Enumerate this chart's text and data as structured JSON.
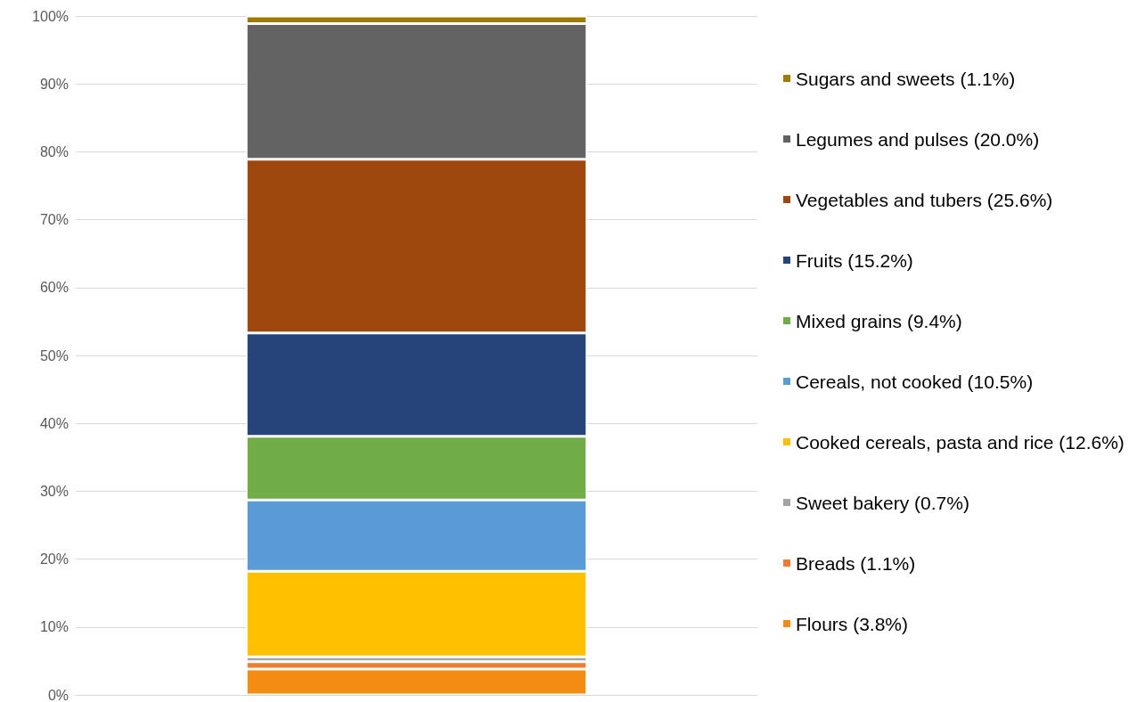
{
  "chart_data": {
    "type": "bar",
    "stacked": true,
    "categories": [
      null
    ],
    "series": [
      {
        "name": "Flours (3.8%)",
        "color": "#f48b13",
        "values": [
          3.8
        ]
      },
      {
        "name": "Breads (1.1%)",
        "color": "#ed7d31",
        "values": [
          1.1
        ]
      },
      {
        "name": "Sweet bakery (0.7%)",
        "color": "#a5a5a5",
        "values": [
          0.7
        ]
      },
      {
        "name": "Cooked cereals, pasta and rice (12.6%)",
        "color": "#ffc000",
        "values": [
          12.6
        ]
      },
      {
        "name": "Cereals, not cooked (10.5%)",
        "color": "#5b9bd5",
        "values": [
          10.5
        ]
      },
      {
        "name": "Mixed grains (9.4%)",
        "color": "#70ad47",
        "values": [
          9.4
        ]
      },
      {
        "name": "Fruits (15.2%)",
        "color": "#264478",
        "values": [
          15.2
        ]
      },
      {
        "name": "Vegetables and tubers (25.6%)",
        "color": "#9e480e",
        "values": [
          25.6
        ]
      },
      {
        "name": "Legumes and pulses (20.0%)",
        "color": "#636363",
        "values": [
          20.0
        ]
      },
      {
        "name": "Sugars and sweets (1.1%)",
        "color": "#9e7b00",
        "values": [
          1.1
        ]
      }
    ],
    "ylim": [
      0,
      100
    ],
    "yticks": [
      {
        "value": 0,
        "label": "0%"
      },
      {
        "value": 10,
        "label": "10%"
      },
      {
        "value": 20,
        "label": "20%"
      },
      {
        "value": 30,
        "label": "30%"
      },
      {
        "value": 40,
        "label": "40%"
      },
      {
        "value": 50,
        "label": "50%"
      },
      {
        "value": 60,
        "label": "60%"
      },
      {
        "value": 70,
        "label": "70%"
      },
      {
        "value": 80,
        "label": "80%"
      },
      {
        "value": 90,
        "label": "90%"
      },
      {
        "value": 100,
        "label": "100%"
      }
    ],
    "grid": "y",
    "legend": "right"
  }
}
